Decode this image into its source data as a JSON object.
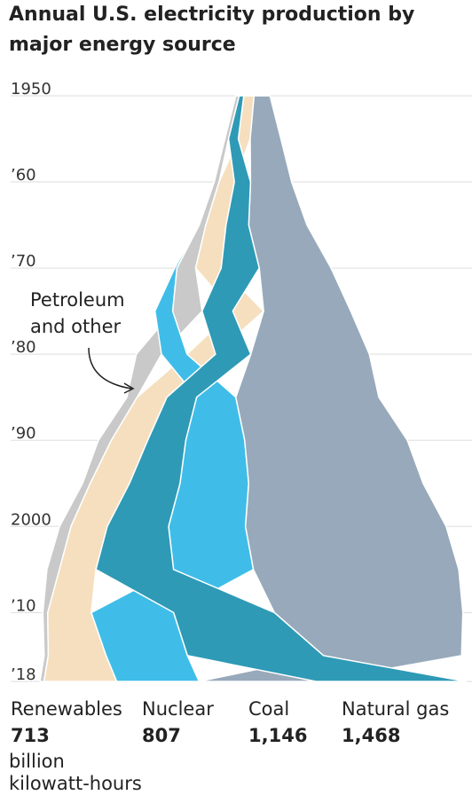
{
  "chart_data": {
    "type": "ranked-stream",
    "title": "Annual U.S. electricity production by major energy source",
    "annotation": "Petroleum and other",
    "unit": "billion kilowatt-hours",
    "x": [
      1950,
      1955,
      1960,
      1965,
      1970,
      1975,
      1980,
      1985,
      1990,
      1995,
      2000,
      2005,
      2010,
      2015,
      2018
    ],
    "xlim": [
      1950,
      2018
    ],
    "xticks": [
      1950,
      {
        "value": 1960,
        "label": "’60"
      },
      {
        "value": 1970,
        "label": "’70"
      },
      {
        "value": 1980,
        "label": "’80"
      },
      {
        "value": 1990,
        "label": "’90"
      },
      2000,
      {
        "value": 2010,
        "label": "’10"
      },
      {
        "value": 2018,
        "label": "’18"
      }
    ],
    "grid": true,
    "series": [
      {
        "name": "Petroleum and other",
        "color": "#c9c9c9",
        "values": [
          34,
          37,
          48,
          65,
          184,
          289,
          246,
          100,
          127,
          75,
          111,
          122,
          48,
          40,
          40
        ]
      },
      {
        "name": "Renewables",
        "color": "#f6dfbe",
        "values": [
          101,
          117,
          150,
          198,
          250,
          303,
          279,
          292,
          357,
          384,
          356,
          358,
          427,
          567,
          713
        ],
        "value_labels": [
          null,
          null,
          null,
          null,
          null,
          null,
          null,
          null,
          null,
          null,
          null,
          null,
          null,
          null,
          "713"
        ]
      },
      {
        "name": "Nuclear",
        "color": "#3fbde8",
        "values": [
          0,
          0,
          1,
          4,
          22,
          173,
          251,
          384,
          577,
          673,
          754,
          782,
          807,
          797,
          807
        ],
        "value_labels": [
          null,
          null,
          null,
          null,
          null,
          null,
          null,
          null,
          null,
          null,
          null,
          null,
          null,
          null,
          "807"
        ]
      },
      {
        "name": "Coal",
        "color": "#97a9ba",
        "values": [
          155,
          301,
          403,
          571,
          704,
          853,
          1162,
          1402,
          1594,
          1709,
          1966,
          2013,
          1847,
          1352,
          1146
        ],
        "value_labels": [
          null,
          null,
          null,
          null,
          null,
          null,
          null,
          null,
          null,
          null,
          null,
          null,
          null,
          null,
          "1,146"
        ]
      },
      {
        "name": "Natural gas",
        "color": "#2e9ab6",
        "values": [
          45,
          95,
          158,
          222,
          373,
          300,
          346,
          292,
          373,
          496,
          601,
          761,
          988,
          1334,
          1468
        ],
        "value_labels": [
          null,
          null,
          null,
          null,
          null,
          null,
          null,
          null,
          null,
          null,
          null,
          null,
          null,
          null,
          "1,468"
        ]
      }
    ]
  }
}
